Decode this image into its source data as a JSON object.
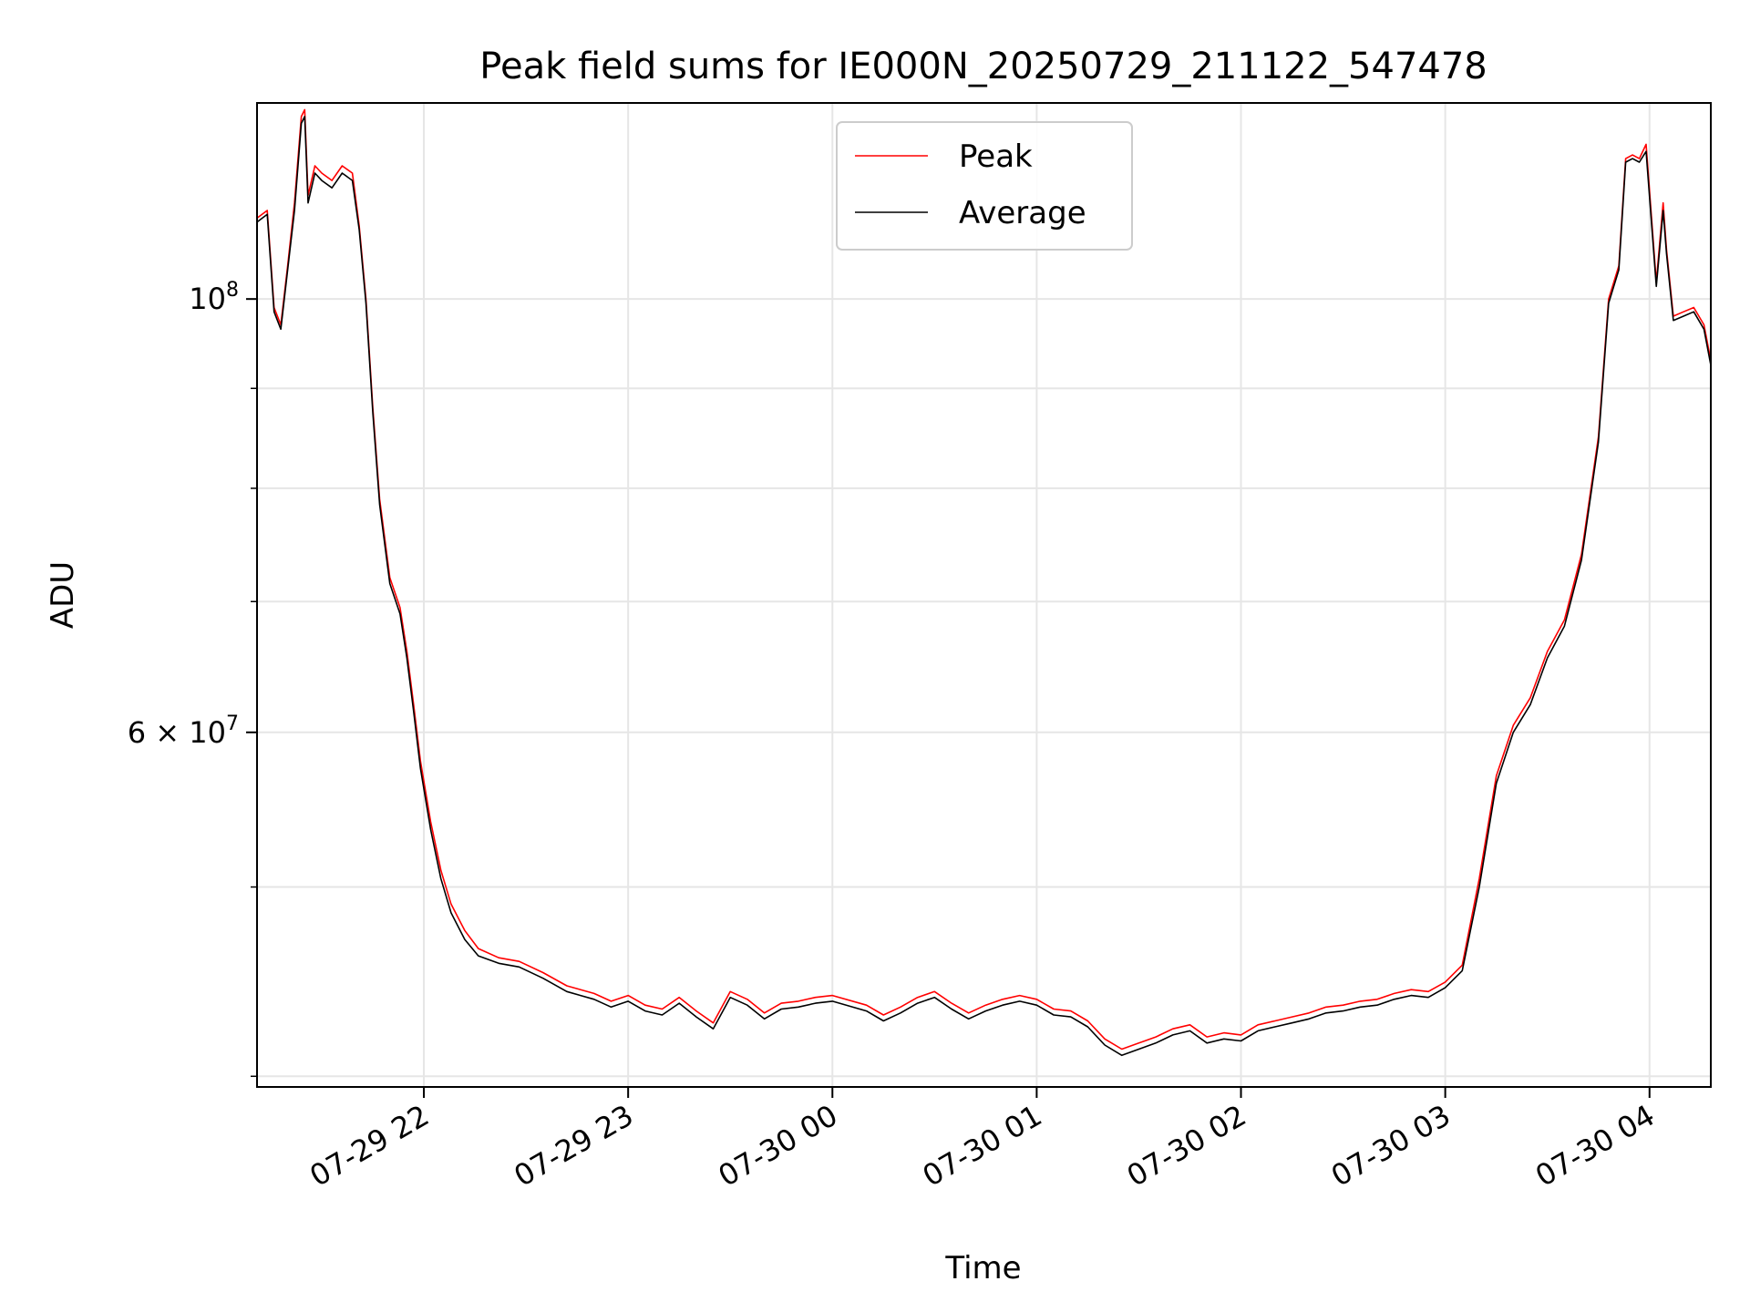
{
  "chart_data": {
    "type": "line",
    "title": "Peak field sums for IE000N_20250729_211122_547478",
    "xlabel": "Time",
    "ylabel": "ADU",
    "yscale": "log",
    "ylim": [
      39500000,
      126000000
    ],
    "xlim": [
      "2025-07-29T21:11:00",
      "2025-07-30T04:18:00"
    ],
    "grid": true,
    "legend_position": "upper center",
    "x_ticks": [
      {
        "t": "2025-07-29T22:00:00",
        "label": "07-29 22"
      },
      {
        "t": "2025-07-29T23:00:00",
        "label": "07-29 23"
      },
      {
        "t": "2025-07-30T00:00:00",
        "label": "07-30 00"
      },
      {
        "t": "2025-07-30T01:00:00",
        "label": "07-30 01"
      },
      {
        "t": "2025-07-30T02:00:00",
        "label": "07-30 02"
      },
      {
        "t": "2025-07-30T03:00:00",
        "label": "07-30 03"
      },
      {
        "t": "2025-07-30T04:00:00",
        "label": "07-30 04"
      }
    ],
    "y_major_ticks": [
      {
        "value": 100000000,
        "base": "10",
        "exp": "8",
        "mantissa": ""
      },
      {
        "value": 60000000,
        "base": "10",
        "exp": "7",
        "mantissa": "6 × "
      }
    ],
    "y_minor_ticks": [
      40000000,
      50000000,
      70000000,
      80000000,
      90000000
    ],
    "series": [
      {
        "name": "Peak",
        "color": "#ff0000",
        "x": [
          "2025-07-29T21:11:00",
          "2025-07-29T21:14:00",
          "2025-07-29T21:16:00",
          "2025-07-29T21:18:00",
          "2025-07-29T21:20:00",
          "2025-07-29T21:22:00",
          "2025-07-29T21:24:00",
          "2025-07-29T21:25:00",
          "2025-07-29T21:26:00",
          "2025-07-29T21:28:00",
          "2025-07-29T21:30:00",
          "2025-07-29T21:33:00",
          "2025-07-29T21:36:00",
          "2025-07-29T21:39:00",
          "2025-07-29T21:41:00",
          "2025-07-29T21:43:00",
          "2025-07-29T21:45:00",
          "2025-07-29T21:47:00",
          "2025-07-29T21:50:00",
          "2025-07-29T21:53:00",
          "2025-07-29T21:55:00",
          "2025-07-29T21:57:00",
          "2025-07-29T21:59:00",
          "2025-07-29T22:02:00",
          "2025-07-29T22:05:00",
          "2025-07-29T22:08:00",
          "2025-07-29T22:12:00",
          "2025-07-29T22:16:00",
          "2025-07-29T22:22:00",
          "2025-07-29T22:28:00",
          "2025-07-29T22:35:00",
          "2025-07-29T22:42:00",
          "2025-07-29T22:50:00",
          "2025-07-29T22:55:00",
          "2025-07-29T23:00:00",
          "2025-07-29T23:05:00",
          "2025-07-29T23:10:00",
          "2025-07-29T23:15:00",
          "2025-07-29T23:20:00",
          "2025-07-29T23:25:00",
          "2025-07-29T23:30:00",
          "2025-07-29T23:35:00",
          "2025-07-29T23:40:00",
          "2025-07-29T23:45:00",
          "2025-07-29T23:50:00",
          "2025-07-29T23:55:00",
          "2025-07-30T00:00:00",
          "2025-07-30T00:10:00",
          "2025-07-30T00:15:00",
          "2025-07-30T00:20:00",
          "2025-07-30T00:25:00",
          "2025-07-30T00:30:00",
          "2025-07-30T00:35:00",
          "2025-07-30T00:40:00",
          "2025-07-30T00:45:00",
          "2025-07-30T00:50:00",
          "2025-07-30T00:55:00",
          "2025-07-30T01:00:00",
          "2025-07-30T01:05:00",
          "2025-07-30T01:10:00",
          "2025-07-30T01:15:00",
          "2025-07-30T01:20:00",
          "2025-07-30T01:25:00",
          "2025-07-30T01:30:00",
          "2025-07-30T01:35:00",
          "2025-07-30T01:40:00",
          "2025-07-30T01:45:00",
          "2025-07-30T01:50:00",
          "2025-07-30T01:55:00",
          "2025-07-30T02:00:00",
          "2025-07-30T02:05:00",
          "2025-07-30T02:10:00",
          "2025-07-30T02:15:00",
          "2025-07-30T02:20:00",
          "2025-07-30T02:25:00",
          "2025-07-30T02:30:00",
          "2025-07-30T02:35:00",
          "2025-07-30T02:40:00",
          "2025-07-30T02:45:00",
          "2025-07-30T02:50:00",
          "2025-07-30T02:55:00",
          "2025-07-30T03:00:00",
          "2025-07-30T03:05:00",
          "2025-07-30T03:10:00",
          "2025-07-30T03:15:00",
          "2025-07-30T03:20:00",
          "2025-07-30T03:25:00",
          "2025-07-30T03:30:00",
          "2025-07-30T03:35:00",
          "2025-07-30T03:40:00",
          "2025-07-30T03:45:00",
          "2025-07-30T03:48:00",
          "2025-07-30T03:51:00",
          "2025-07-30T03:53:00",
          "2025-07-30T03:55:00",
          "2025-07-30T03:57:00",
          "2025-07-30T03:59:00",
          "2025-07-30T04:02:00",
          "2025-07-30T04:04:00",
          "2025-07-30T04:05:00",
          "2025-07-30T04:07:00",
          "2025-07-30T04:10:00",
          "2025-07-30T04:13:00",
          "2025-07-30T04:16:00",
          "2025-07-30T04:18:00"
        ],
        "values": [
          110000000,
          111000000,
          99000000,
          97000000,
          104000000,
          112000000,
          124000000,
          125000000,
          113000000,
          117000000,
          116000000,
          115000000,
          117000000,
          116000000,
          109000000,
          100000000,
          88000000,
          79000000,
          72000000,
          69500000,
          66000000,
          62000000,
          58000000,
          54000000,
          51000000,
          49000000,
          47500000,
          46500000,
          46000000,
          45800000,
          45200000,
          44500000,
          44100000,
          43700000,
          44000000,
          43500000,
          43300000,
          43900000,
          43200000,
          42600000,
          44200000,
          43800000,
          43100000,
          43600000,
          43700000,
          43900000,
          44000000,
          43500000,
          43000000,
          43400000,
          43900000,
          44200000,
          43600000,
          43100000,
          43500000,
          43800000,
          44000000,
          43800000,
          43300000,
          43200000,
          42700000,
          41800000,
          41300000,
          41600000,
          41900000,
          42300000,
          42500000,
          41900000,
          42100000,
          42000000,
          42500000,
          42700000,
          42900000,
          43100000,
          43400000,
          43500000,
          43700000,
          43800000,
          44100000,
          44300000,
          44200000,
          44700000,
          45600000,
          50500000,
          57000000,
          60500000,
          62500000,
          66000000,
          68500000,
          74000000,
          85000000,
          100000000,
          104000000,
          118000000,
          118500000,
          118000000,
          120000000,
          102000000,
          112000000,
          106000000,
          98000000,
          98500000,
          99000000,
          97000000,
          93000000
        ]
      },
      {
        "name": "Average",
        "color": "#000000",
        "x": [
          "2025-07-29T21:11:00",
          "2025-07-29T21:14:00",
          "2025-07-29T21:16:00",
          "2025-07-29T21:18:00",
          "2025-07-29T21:20:00",
          "2025-07-29T21:22:00",
          "2025-07-29T21:24:00",
          "2025-07-29T21:25:00",
          "2025-07-29T21:26:00",
          "2025-07-29T21:28:00",
          "2025-07-29T21:30:00",
          "2025-07-29T21:33:00",
          "2025-07-29T21:36:00",
          "2025-07-29T21:39:00",
          "2025-07-29T21:41:00",
          "2025-07-29T21:43:00",
          "2025-07-29T21:45:00",
          "2025-07-29T21:47:00",
          "2025-07-29T21:50:00",
          "2025-07-29T21:53:00",
          "2025-07-29T21:55:00",
          "2025-07-29T21:57:00",
          "2025-07-29T21:59:00",
          "2025-07-29T22:02:00",
          "2025-07-29T22:05:00",
          "2025-07-29T22:08:00",
          "2025-07-29T22:12:00",
          "2025-07-29T22:16:00",
          "2025-07-29T22:22:00",
          "2025-07-29T22:28:00",
          "2025-07-29T22:35:00",
          "2025-07-29T22:42:00",
          "2025-07-29T22:50:00",
          "2025-07-29T22:55:00",
          "2025-07-29T23:00:00",
          "2025-07-29T23:05:00",
          "2025-07-29T23:10:00",
          "2025-07-29T23:15:00",
          "2025-07-29T23:20:00",
          "2025-07-29T23:25:00",
          "2025-07-29T23:30:00",
          "2025-07-29T23:35:00",
          "2025-07-29T23:40:00",
          "2025-07-29T23:45:00",
          "2025-07-29T23:50:00",
          "2025-07-29T23:55:00",
          "2025-07-30T00:00:00",
          "2025-07-30T00:10:00",
          "2025-07-30T00:15:00",
          "2025-07-30T00:20:00",
          "2025-07-30T00:25:00",
          "2025-07-30T00:30:00",
          "2025-07-30T00:35:00",
          "2025-07-30T00:40:00",
          "2025-07-30T00:45:00",
          "2025-07-30T00:50:00",
          "2025-07-30T00:55:00",
          "2025-07-30T01:00:00",
          "2025-07-30T01:05:00",
          "2025-07-30T01:10:00",
          "2025-07-30T01:15:00",
          "2025-07-30T01:20:00",
          "2025-07-30T01:25:00",
          "2025-07-30T01:30:00",
          "2025-07-30T01:35:00",
          "2025-07-30T01:40:00",
          "2025-07-30T01:45:00",
          "2025-07-30T01:50:00",
          "2025-07-30T01:55:00",
          "2025-07-30T02:00:00",
          "2025-07-30T02:05:00",
          "2025-07-30T02:10:00",
          "2025-07-30T02:15:00",
          "2025-07-30T02:20:00",
          "2025-07-30T02:25:00",
          "2025-07-30T02:30:00",
          "2025-07-30T02:35:00",
          "2025-07-30T02:40:00",
          "2025-07-30T02:45:00",
          "2025-07-30T02:50:00",
          "2025-07-30T02:55:00",
          "2025-07-30T03:00:00",
          "2025-07-30T03:05:00",
          "2025-07-30T03:10:00",
          "2025-07-30T03:15:00",
          "2025-07-30T03:20:00",
          "2025-07-30T03:25:00",
          "2025-07-30T03:30:00",
          "2025-07-30T03:35:00",
          "2025-07-30T03:40:00",
          "2025-07-30T03:45:00",
          "2025-07-30T03:48:00",
          "2025-07-30T03:51:00",
          "2025-07-30T03:53:00",
          "2025-07-30T03:55:00",
          "2025-07-30T03:57:00",
          "2025-07-30T03:59:00",
          "2025-07-30T04:02:00",
          "2025-07-30T04:04:00",
          "2025-07-30T04:05:00",
          "2025-07-30T04:07:00",
          "2025-07-30T04:10:00",
          "2025-07-30T04:13:00",
          "2025-07-30T04:16:00",
          "2025-07-30T04:18:00"
        ],
        "values": [
          109500000,
          110500000,
          98500000,
          96500000,
          103500000,
          111000000,
          123000000,
          124000000,
          112000000,
          116000000,
          115000000,
          114000000,
          116000000,
          115000000,
          108500000,
          99500000,
          87500000,
          78500000,
          71500000,
          69000000,
          65500000,
          61500000,
          57500000,
          53500000,
          50500000,
          48500000,
          47000000,
          46100000,
          45700000,
          45500000,
          44900000,
          44200000,
          43800000,
          43400000,
          43700000,
          43200000,
          43000000,
          43600000,
          42900000,
          42300000,
          43900000,
          43500000,
          42800000,
          43300000,
          43400000,
          43600000,
          43700000,
          43200000,
          42700000,
          43100000,
          43600000,
          43900000,
          43300000,
          42800000,
          43200000,
          43500000,
          43700000,
          43500000,
          43000000,
          42900000,
          42400000,
          41500000,
          41000000,
          41300000,
          41600000,
          42000000,
          42200000,
          41600000,
          41800000,
          41700000,
          42200000,
          42400000,
          42600000,
          42800000,
          43100000,
          43200000,
          43400000,
          43500000,
          43800000,
          44000000,
          43900000,
          44400000,
          45300000,
          50000000,
          56500000,
          60000000,
          62000000,
          65500000,
          68000000,
          73500000,
          84500000,
          99500000,
          103500000,
          117500000,
          118000000,
          117500000,
          119000000,
          101500000,
          111000000,
          105500000,
          97500000,
          98000000,
          98500000,
          96500000,
          92500000
        ]
      }
    ]
  }
}
